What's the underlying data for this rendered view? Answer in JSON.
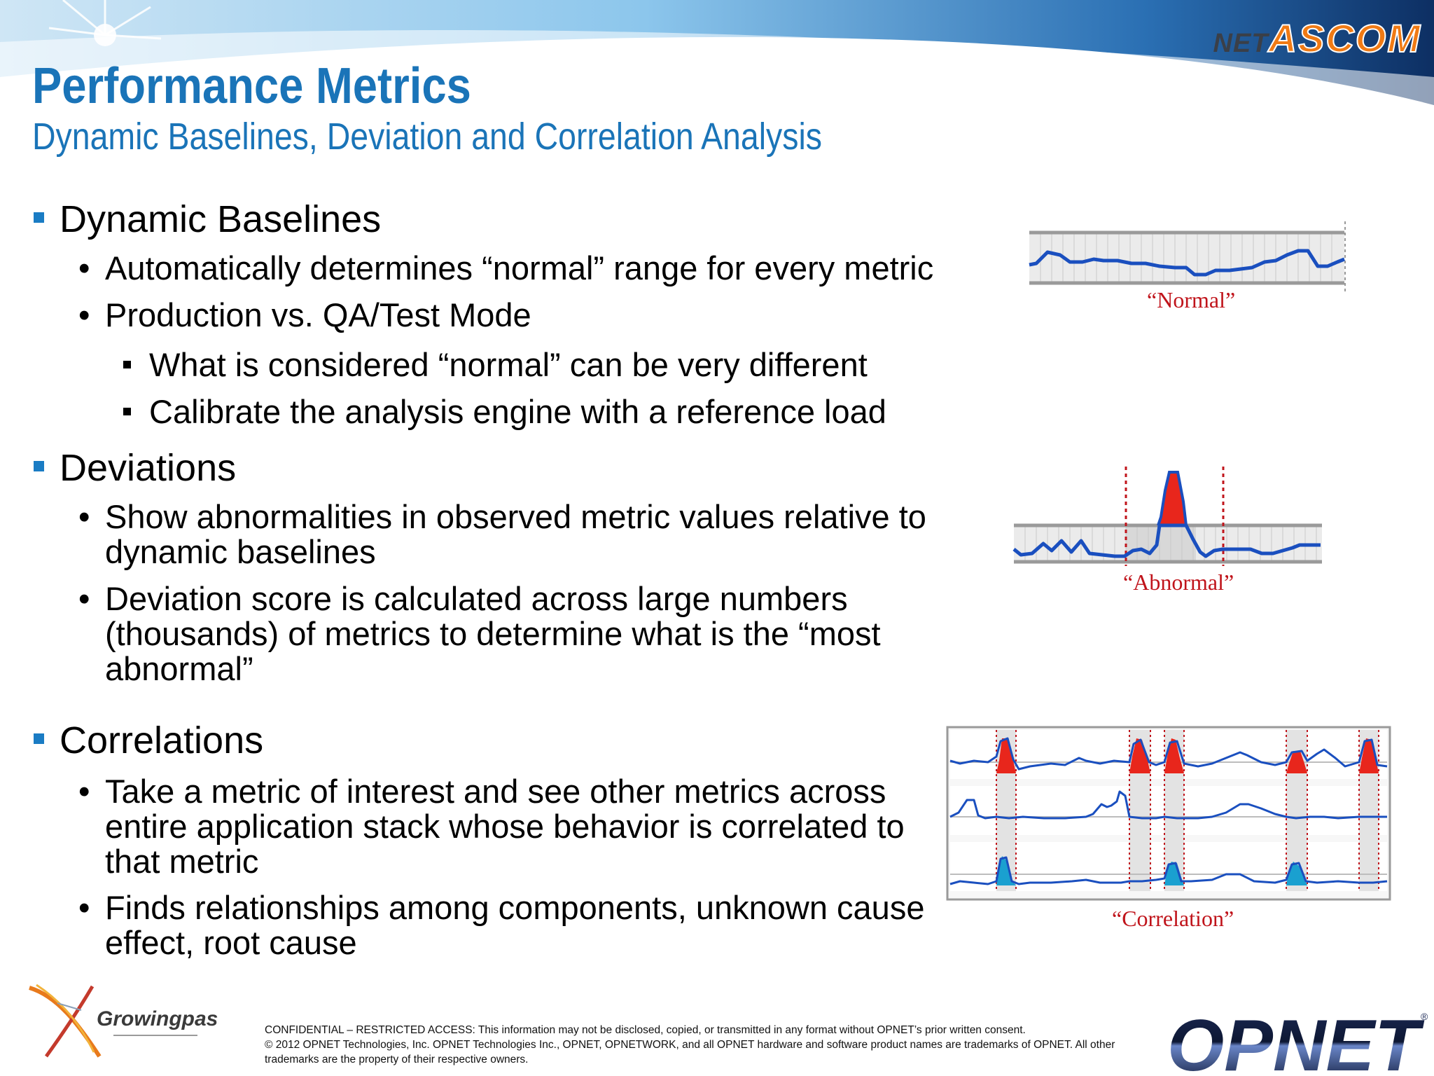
{
  "slide": {
    "title": "Performance Metrics",
    "subtitle": "Dynamic Baselines, Deviation and Correlation Analysis",
    "logos": {
      "top_right": {
        "net": "NET",
        "ascom": "ASCOM"
      },
      "bottom_left": "Growingpass",
      "bottom_right": "OPNET"
    },
    "sections": [
      {
        "heading": "Dynamic Baselines",
        "points": [
          {
            "text": "Automatically determines “normal” range for every metric"
          },
          {
            "text": "Production vs. QA/Test Mode",
            "subpoints": [
              "What is considered “normal” can be very different",
              "Calibrate the analysis engine  with a reference load"
            ]
          }
        ]
      },
      {
        "heading": "Deviations",
        "points": [
          {
            "text": "Show abnormalities in observed metric values relative to dynamic baselines"
          },
          {
            "text": "Deviation score is calculated across large numbers (thousands) of metrics to determine what is the “most abnormal”"
          }
        ]
      },
      {
        "heading": "Correlations",
        "points": [
          {
            "text": "Take a metric of interest and see other metrics across entire application stack whose behavior is correlated to that metric"
          },
          {
            "text": "Finds relationships among components, unknown cause effect, root cause"
          }
        ]
      }
    ],
    "figures": {
      "normal_caption": "“Normal”",
      "abnormal_caption": "“Abnormal”",
      "correlation_caption": "“Correlation”"
    },
    "footer": {
      "line1": "CONFIDENTIAL – RESTRICTED ACCESS: This information may not be disclosed, copied, or transmitted in any format without OPNET’s prior written consent.",
      "line2": "© 2012 OPNET Technologies, Inc.  OPNET Technologies Inc., OPNET, OPNETWORK, and all OPNET hardware and software product names are trademarks of OPNET.  All other trademarks are the property of their respective owners."
    },
    "colors": {
      "title": "#1a74b8",
      "bullet": "#1a7cc4",
      "line": "#1a4fbf",
      "deviation": "#e8261c",
      "correlation_fill": "#1aa0d0",
      "caption": "#c0141b"
    }
  }
}
